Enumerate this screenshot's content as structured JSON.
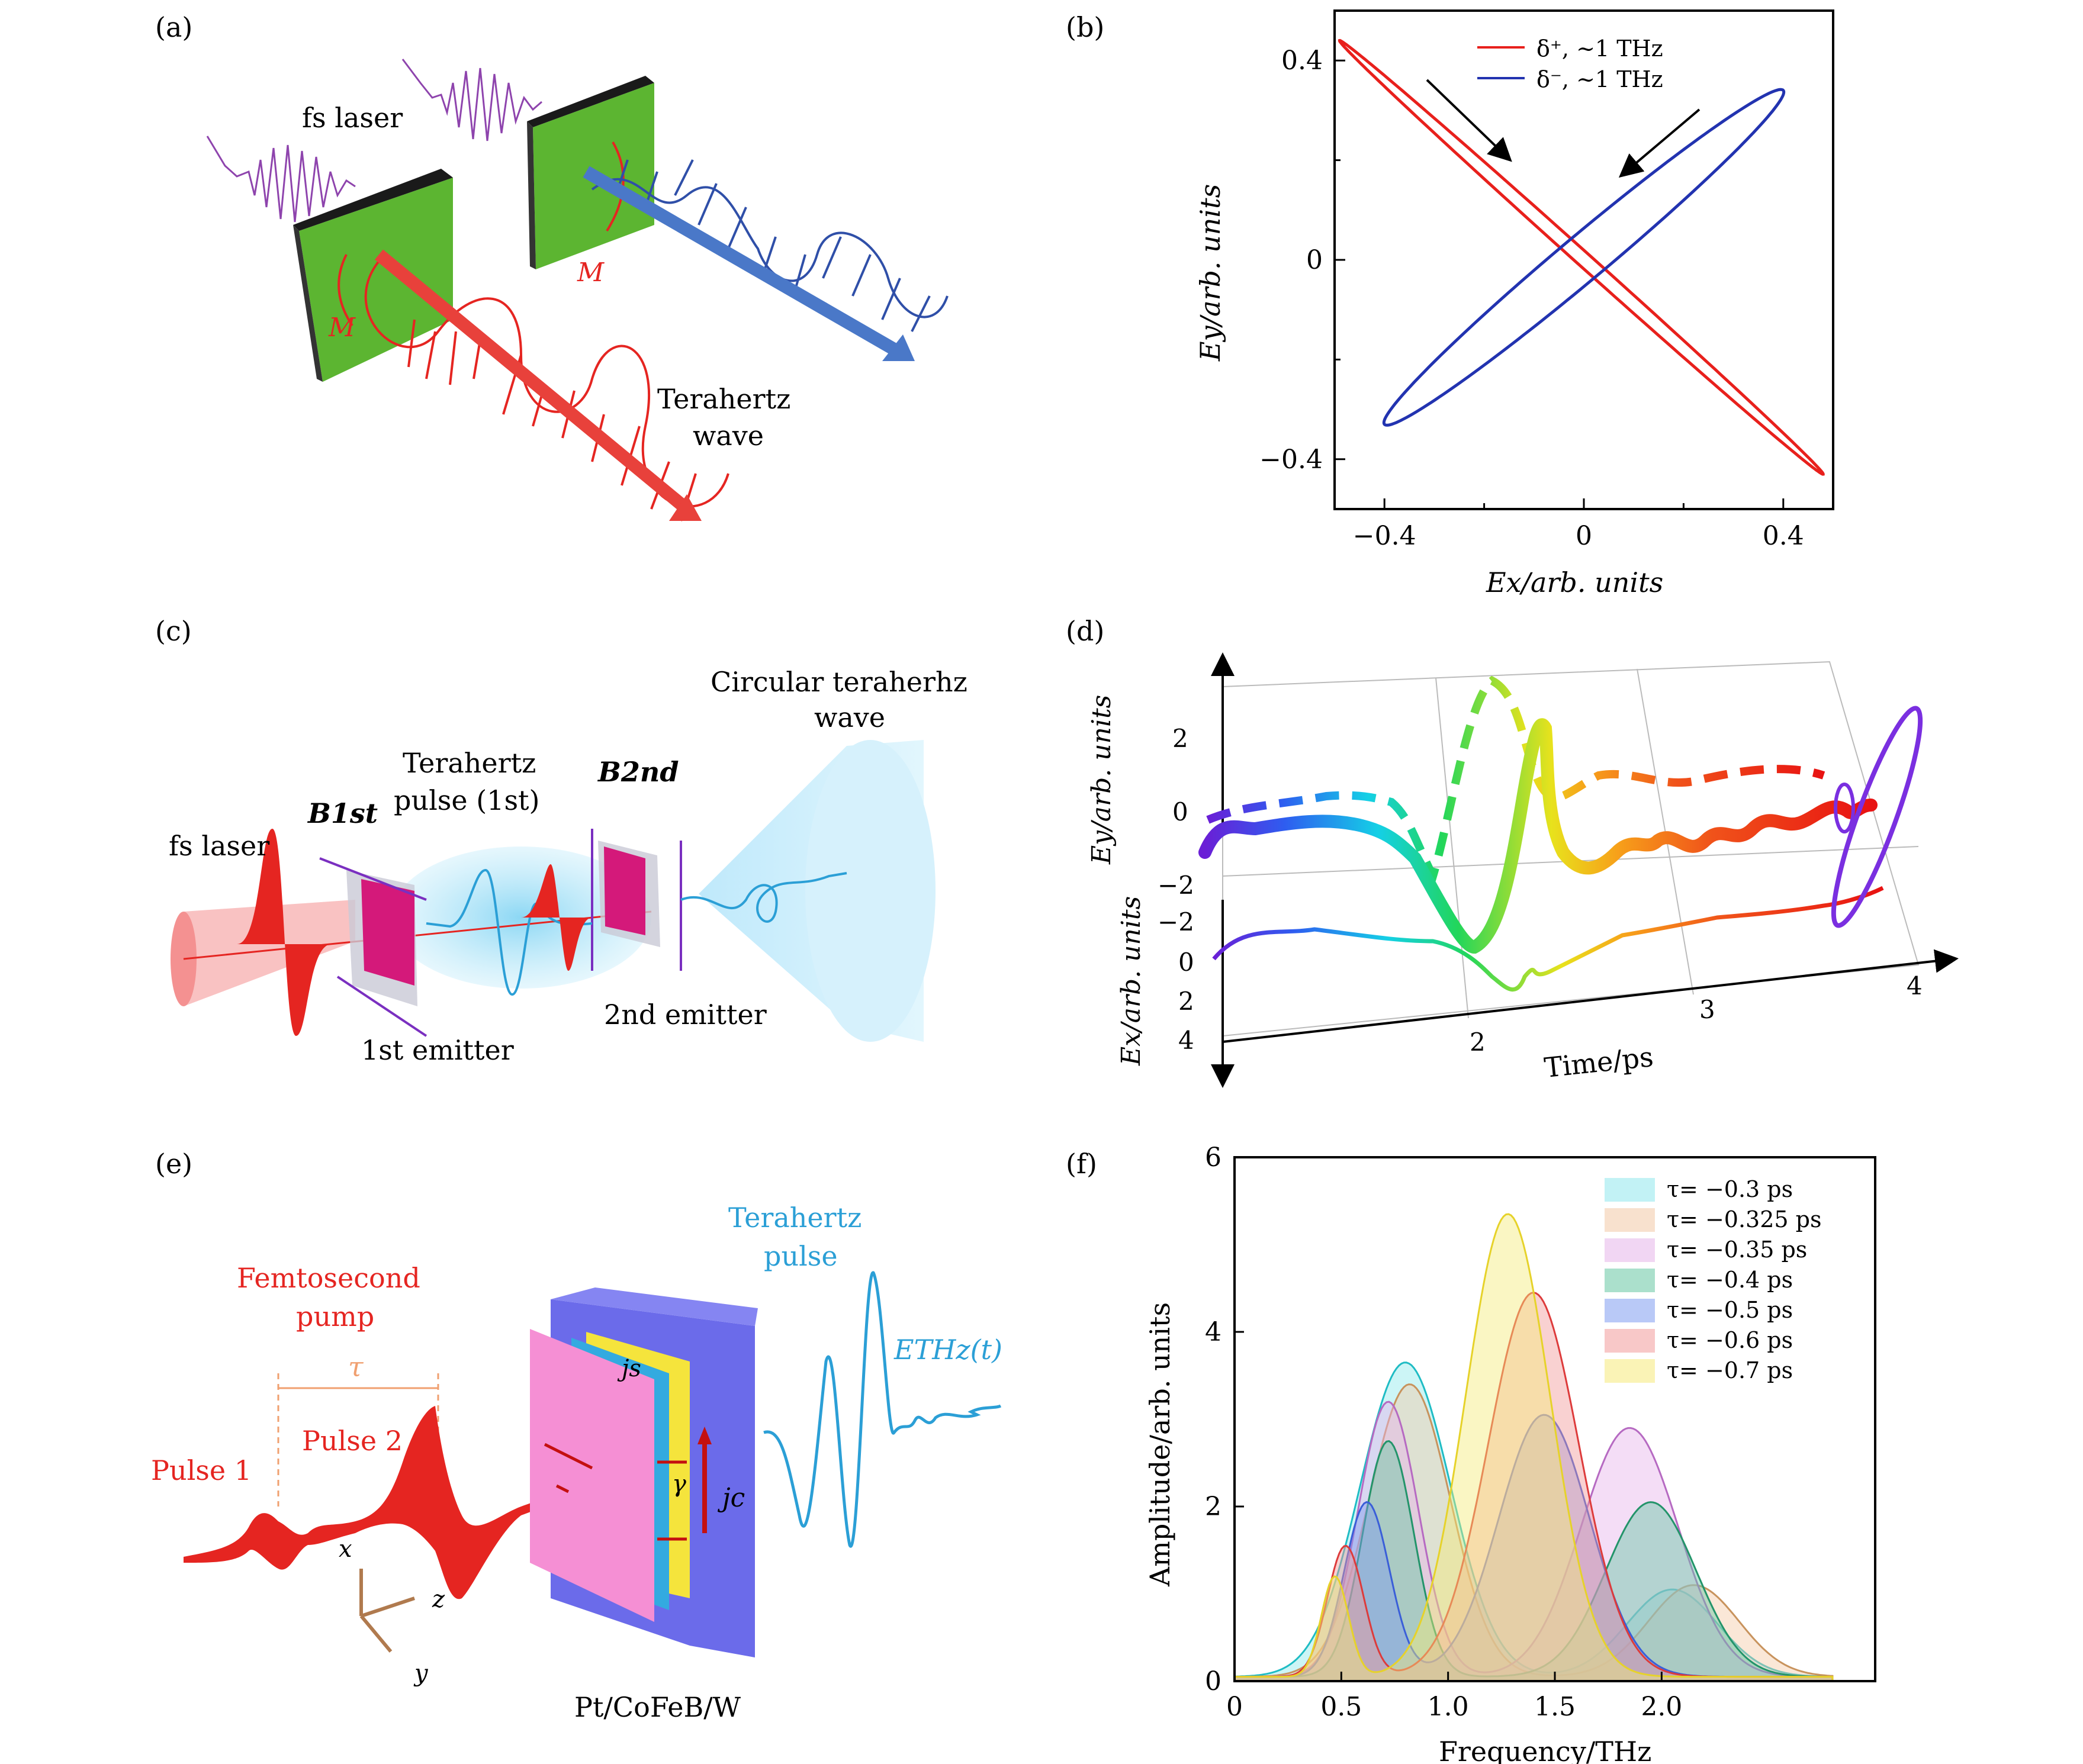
{
  "panels": {
    "a": {
      "label": "(a)",
      "fs_laser": "fs laser",
      "m_left": "M",
      "m_right": "M",
      "thz_line1": "Terahertz",
      "thz_line2": "wave",
      "colors": {
        "red": "#e52521",
        "blue": "#2f4fa8",
        "purple": "#8e44ad",
        "green": "#5cb531"
      }
    },
    "b": {
      "label": "(b)",
      "legend_plus": "δ⁺, ~1 THz",
      "legend_minus": "δ⁻, ~1 THz",
      "xlabel": "Ex/arb. units",
      "ylabel": "Ey/arb. units",
      "xticks": [
        "−0.4",
        "0",
        "0.4"
      ],
      "yticks": [
        "0.4",
        "0",
        "−0.4"
      ]
    },
    "c": {
      "label": "(c)",
      "fs_laser": "fs laser",
      "b1": "B1st",
      "b2": "B2nd",
      "pulse_line1": "Terahertz",
      "pulse_line2": "pulse (1st)",
      "circ_line1": "Circular teraherhz",
      "circ_line2": "wave",
      "emitter1": "1st emitter",
      "emitter2": "2nd emitter"
    },
    "d": {
      "label": "(d)",
      "ey_label": "Ey/arb. units",
      "ex_label": "Ex/arb. units",
      "time_label": "Time/ps",
      "ey_ticks": [
        "2",
        "0",
        "−2"
      ],
      "ex_ticks": [
        "−2",
        "0",
        "2",
        "4"
      ],
      "time_ticks": [
        "2",
        "3",
        "4"
      ]
    },
    "e": {
      "label": "(e)",
      "pump_line1": "Femtosecond",
      "pump_line2": "pump",
      "tau": "τ",
      "pulse1": "Pulse 1",
      "pulse2": "Pulse 2",
      "thz_line1": "Terahertz",
      "thz_line2": "pulse",
      "ethz": "ETHz(t)",
      "js": "js",
      "jc": "jc",
      "gamma": "γ",
      "axis_x": "x",
      "axis_y": "y",
      "axis_z": "z",
      "stack": "Pt/CoFeB/W"
    },
    "f": {
      "label": "(f)",
      "xlabel": "Frequency/THz",
      "ylabel": "Amplitude/arb. units",
      "xticks": [
        "0",
        "0.5",
        "1.0",
        "1.5",
        "2.0"
      ],
      "yticks": [
        "0",
        "2",
        "4",
        "6"
      ]
    }
  },
  "chart_data": [
    {
      "panel": "b",
      "type": "line",
      "xlabel": "Ex/arb. units",
      "ylabel": "Ey/arb. units",
      "xlim": [
        -0.5,
        0.5
      ],
      "ylim": [
        -0.5,
        0.5
      ],
      "series": [
        {
          "name": "δ⁺, ~1 THz",
          "color": "#e8201c",
          "shape": "ellipse",
          "major_axis_end": [
            -0.49,
            0.44
          ],
          "major_axis_start": [
            0.48,
            -0.43
          ],
          "minor_semi_axis": 0.014
        },
        {
          "name": "δ⁻, ~1 THz",
          "color": "#2233b0",
          "shape": "ellipse",
          "major_axis_end": [
            0.4,
            0.34
          ],
          "major_axis_start": [
            -0.4,
            -0.33
          ],
          "minor_semi_axis": 0.045
        }
      ]
    },
    {
      "panel": "f",
      "type": "area",
      "xlabel": "Frequency/THz",
      "ylabel": "Amplitude/arb. units",
      "xlim": [
        0,
        3
      ],
      "ylim": [
        0,
        6
      ],
      "series": [
        {
          "name": "τ= −0.3 ps",
          "fill": "#8fe8ec",
          "stroke": "#1fbcc4",
          "peaks": [
            [
              0.8,
              3.6,
              0.3
            ],
            [
              2.05,
              1.0,
              0.3
            ]
          ]
        },
        {
          "name": "τ= −0.325 ps",
          "fill": "#f3c9a6",
          "stroke": "#c8935d",
          "peaks": [
            [
              0.82,
              3.35,
              0.27
            ],
            [
              2.15,
              1.05,
              0.3
            ]
          ]
        },
        {
          "name": "τ= −0.35 ps",
          "fill": "#e6b4ea",
          "stroke": "#b66ac2",
          "peaks": [
            [
              0.72,
              3.15,
              0.2
            ],
            [
              1.85,
              2.85,
              0.32
            ]
          ]
        },
        {
          "name": "τ= −0.4 ps",
          "fill": "#66c7a3",
          "stroke": "#23946a",
          "peaks": [
            [
              0.72,
              2.7,
              0.17
            ],
            [
              1.95,
              2.0,
              0.3
            ]
          ]
        },
        {
          "name": "τ= −0.5 ps",
          "fill": "#7f9cf0",
          "stroke": "#3a5ed8",
          "peaks": [
            [
              0.62,
              2.0,
              0.15
            ],
            [
              1.45,
              3.0,
              0.3
            ]
          ]
        },
        {
          "name": "τ= −0.6 ps",
          "fill": "#f29a9a",
          "stroke": "#dd3b3b",
          "peaks": [
            [
              0.52,
              1.5,
              0.12
            ],
            [
              1.4,
              4.4,
              0.3
            ]
          ]
        },
        {
          "name": "τ= −0.7 ps",
          "fill": "#f5ea7a",
          "stroke": "#e6d22a",
          "peaks": [
            [
              0.47,
              1.15,
              0.09
            ],
            [
              1.28,
              5.3,
              0.28
            ]
          ]
        }
      ]
    }
  ]
}
